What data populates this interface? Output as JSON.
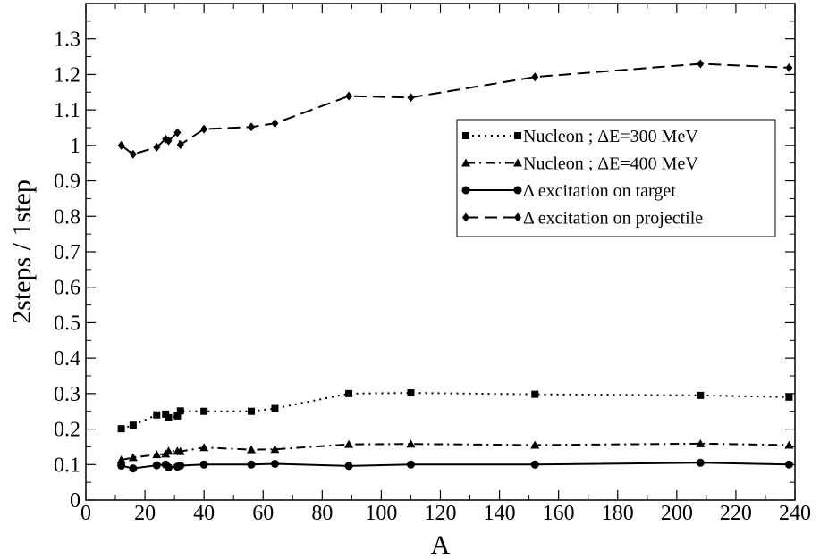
{
  "chart_data": {
    "type": "line",
    "title": "",
    "xlabel": "A",
    "ylabel": "2steps / 1step",
    "xlim": [
      0,
      240
    ],
    "ylim": [
      0,
      1.4
    ],
    "x_ticks": [
      0,
      20,
      40,
      60,
      80,
      100,
      120,
      140,
      160,
      180,
      200,
      220,
      240
    ],
    "y_ticks": [
      0,
      0.1,
      0.2,
      0.3,
      0.4,
      0.5,
      0.6,
      0.7,
      0.8,
      0.9,
      1,
      1.1,
      1.2,
      1.3
    ],
    "x_tick_labels": [
      "0",
      "20",
      "40",
      "60",
      "80",
      "100",
      "120",
      "140",
      "160",
      "180",
      "200",
      "220",
      "240"
    ],
    "y_tick_labels": [
      "0",
      "0.1",
      "0.2",
      "0.3",
      "0.4",
      "0.5",
      "0.6",
      "0.7",
      "0.8",
      "0.9",
      "1",
      "1.1",
      "1.2",
      "1.3"
    ],
    "grid": false,
    "legend_position": "right",
    "series": [
      {
        "name": "Nucleon ;  ΔE=300 MeV",
        "line_style": "dotted",
        "marker": "square",
        "x": [
          12,
          16,
          24,
          27,
          28,
          31,
          32,
          40,
          56,
          64,
          89,
          110,
          152,
          208,
          238
        ],
        "y": [
          0.201,
          0.211,
          0.24,
          0.242,
          0.232,
          0.237,
          0.251,
          0.25,
          0.25,
          0.258,
          0.3,
          0.302,
          0.298,
          0.295,
          0.29
        ]
      },
      {
        "name": "Nucleon  ;  ΔE=400 MeV",
        "line_style": "dashdot",
        "marker": "triangle",
        "x": [
          12,
          16,
          24,
          27,
          28,
          31,
          32,
          40,
          56,
          64,
          89,
          110,
          152,
          208,
          238
        ],
        "y": [
          0.113,
          0.12,
          0.128,
          0.13,
          0.138,
          0.138,
          0.137,
          0.148,
          0.142,
          0.143,
          0.157,
          0.158,
          0.155,
          0.159,
          0.155
        ]
      },
      {
        "name": "Δ excitation on target",
        "line_style": "solid",
        "marker": "circle",
        "x": [
          12,
          16,
          24,
          27,
          28,
          31,
          32,
          40,
          56,
          64,
          89,
          110,
          152,
          208,
          238
        ],
        "y": [
          0.097,
          0.089,
          0.098,
          0.1,
          0.092,
          0.094,
          0.097,
          0.1,
          0.1,
          0.102,
          0.096,
          0.1,
          0.1,
          0.105,
          0.1
        ]
      },
      {
        "name": "Δ excitation on projectile",
        "line_style": "dashed",
        "marker": "diamond",
        "x": [
          12,
          16,
          24,
          27,
          28,
          31,
          32,
          40,
          56,
          64,
          89,
          110,
          152,
          208,
          238
        ],
        "y": [
          1.0,
          0.975,
          0.995,
          1.018,
          1.013,
          1.036,
          1.002,
          1.046,
          1.052,
          1.062,
          1.139,
          1.135,
          1.193,
          1.23,
          1.219
        ]
      }
    ]
  }
}
